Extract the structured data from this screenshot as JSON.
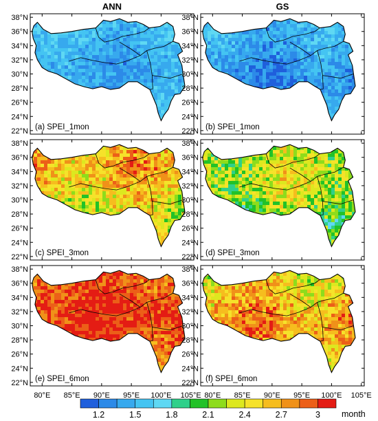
{
  "columns": [
    "ANN",
    "GS"
  ],
  "panels": [
    {
      "label": "(a) SPEI_1mon",
      "row": 0,
      "col": 0,
      "dominant": 1.5,
      "spread": 0.25
    },
    {
      "label": "(b) SPEI_1mon",
      "row": 0,
      "col": 1,
      "dominant": 1.4,
      "spread": 0.3
    },
    {
      "label": "(c) SPEI_3mon",
      "row": 1,
      "col": 0,
      "dominant": 2.5,
      "spread": 0.45
    },
    {
      "label": "(d) SPEI_3mon",
      "row": 1,
      "col": 1,
      "dominant": 2.2,
      "spread": 0.45
    },
    {
      "label": "(e) SPEI_6mon",
      "row": 2,
      "col": 0,
      "dominant": 2.95,
      "spread": 0.3
    },
    {
      "label": "(f) SPEI_6mon",
      "row": 2,
      "col": 1,
      "dominant": 2.6,
      "spread": 0.45
    }
  ],
  "axes": {
    "lat_ticks": [
      "22°N",
      "24°N",
      "26°N",
      "28°N",
      "30°N",
      "32°N",
      "34°N",
      "36°N",
      "38°N"
    ],
    "lon_ticks": [
      "80°E",
      "85°E",
      "90°E",
      "95°E",
      "100°E",
      "105°E"
    ]
  },
  "colorbar": {
    "labels": [
      "1.2",
      "1.5",
      "1.8",
      "2.1",
      "2.4",
      "2.7",
      "3"
    ],
    "unit": "month",
    "colors": [
      "#1f5fdc",
      "#2c8ae8",
      "#37a9ee",
      "#44c4f2",
      "#5fd8f3",
      "#2fd08a",
      "#22c228",
      "#8edc1c",
      "#dde81f",
      "#f6e22a",
      "#f6bd1e",
      "#f09119",
      "#ec5f18",
      "#e41c14"
    ]
  }
}
